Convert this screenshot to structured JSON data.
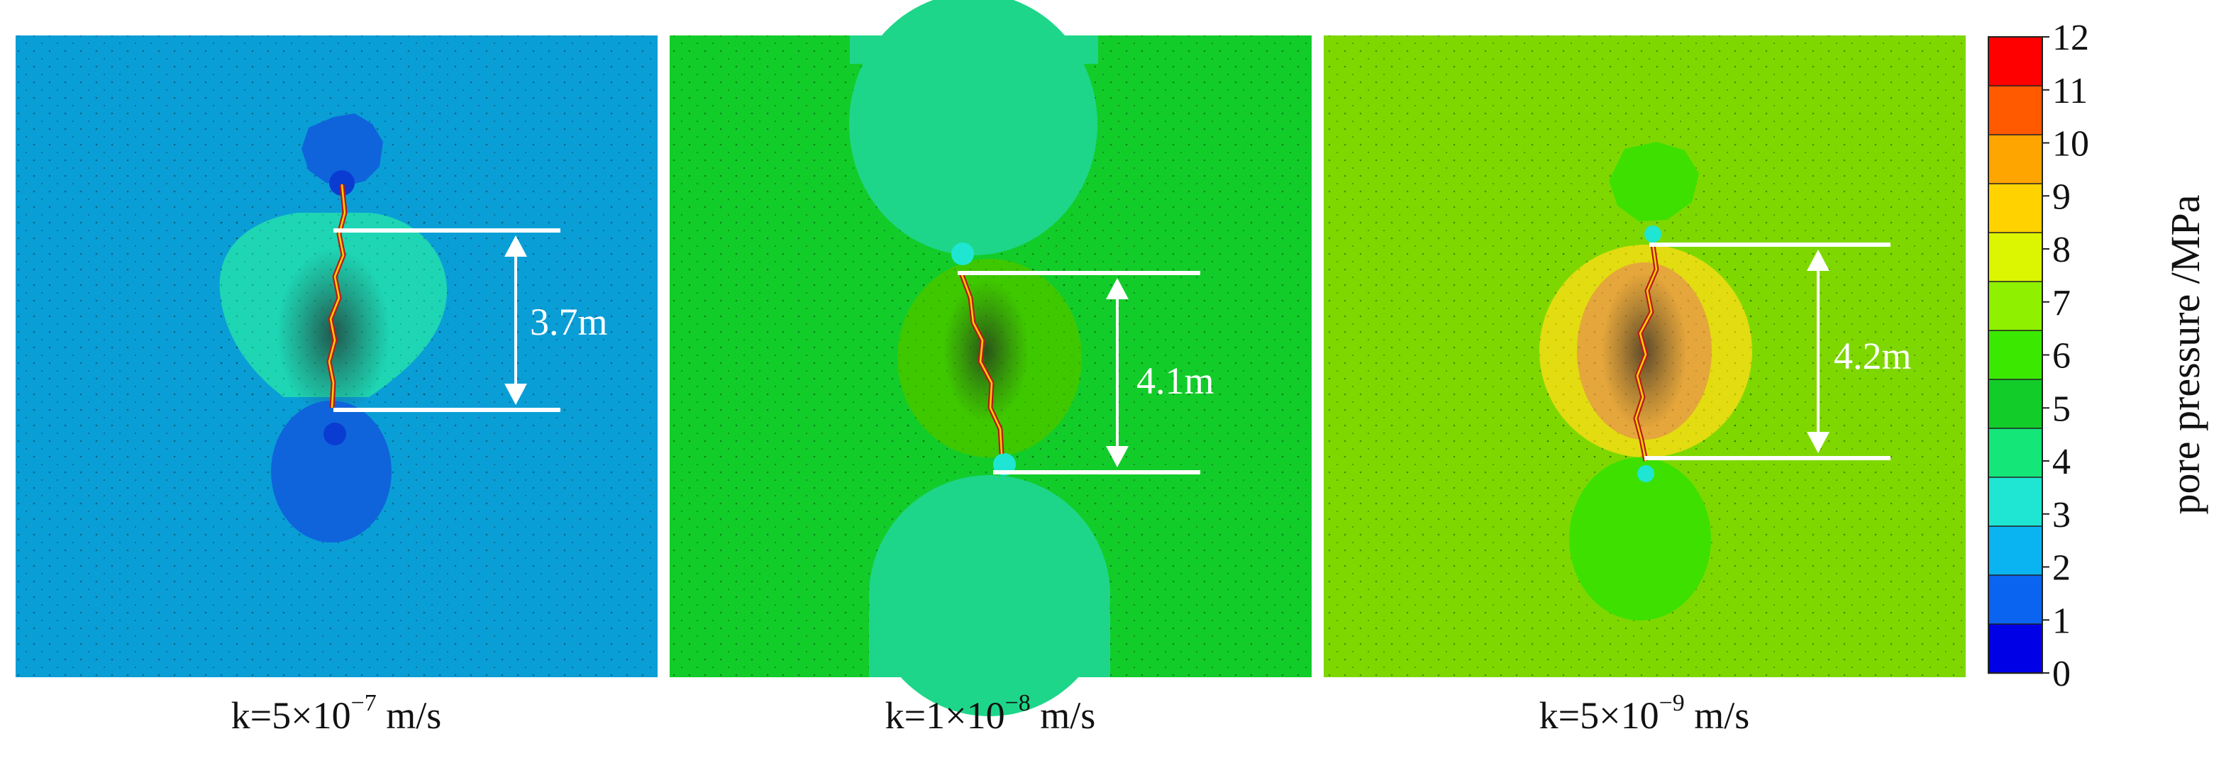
{
  "panels": [
    {
      "name": "panel-k-5e-7",
      "background": "#0a9ed6",
      "caption": {
        "prefix": "k=5×10",
        "exponent": "−7",
        "suffix": " m/s"
      },
      "measurement": "3.7m"
    },
    {
      "name": "panel-k-1e-8",
      "background": "#12cc2a",
      "caption": {
        "prefix": "k=1×10",
        "exponent": "−8",
        "suffix": " m/s"
      },
      "measurement": "4.1m"
    },
    {
      "name": "panel-k-5e-9",
      "background": "#7ed800",
      "caption": {
        "prefix": "k=5×10",
        "exponent": "−9",
        "suffix": " m/s"
      },
      "measurement": "4.2m"
    }
  ],
  "colorbar": {
    "label": "pore pressure /MPa",
    "ticks": [
      "12",
      "11",
      "10",
      "9",
      "8",
      "7",
      "6",
      "5",
      "4",
      "3",
      "2",
      "1",
      "0"
    ],
    "colors": [
      "#ff0000",
      "#ff5a00",
      "#ffa500",
      "#ffd200",
      "#dcf500",
      "#8ff000",
      "#3be800",
      "#12cc2a",
      "#14e678",
      "#1ee6d2",
      "#0ab4f0",
      "#0a64f0",
      "#0000e6"
    ]
  }
}
